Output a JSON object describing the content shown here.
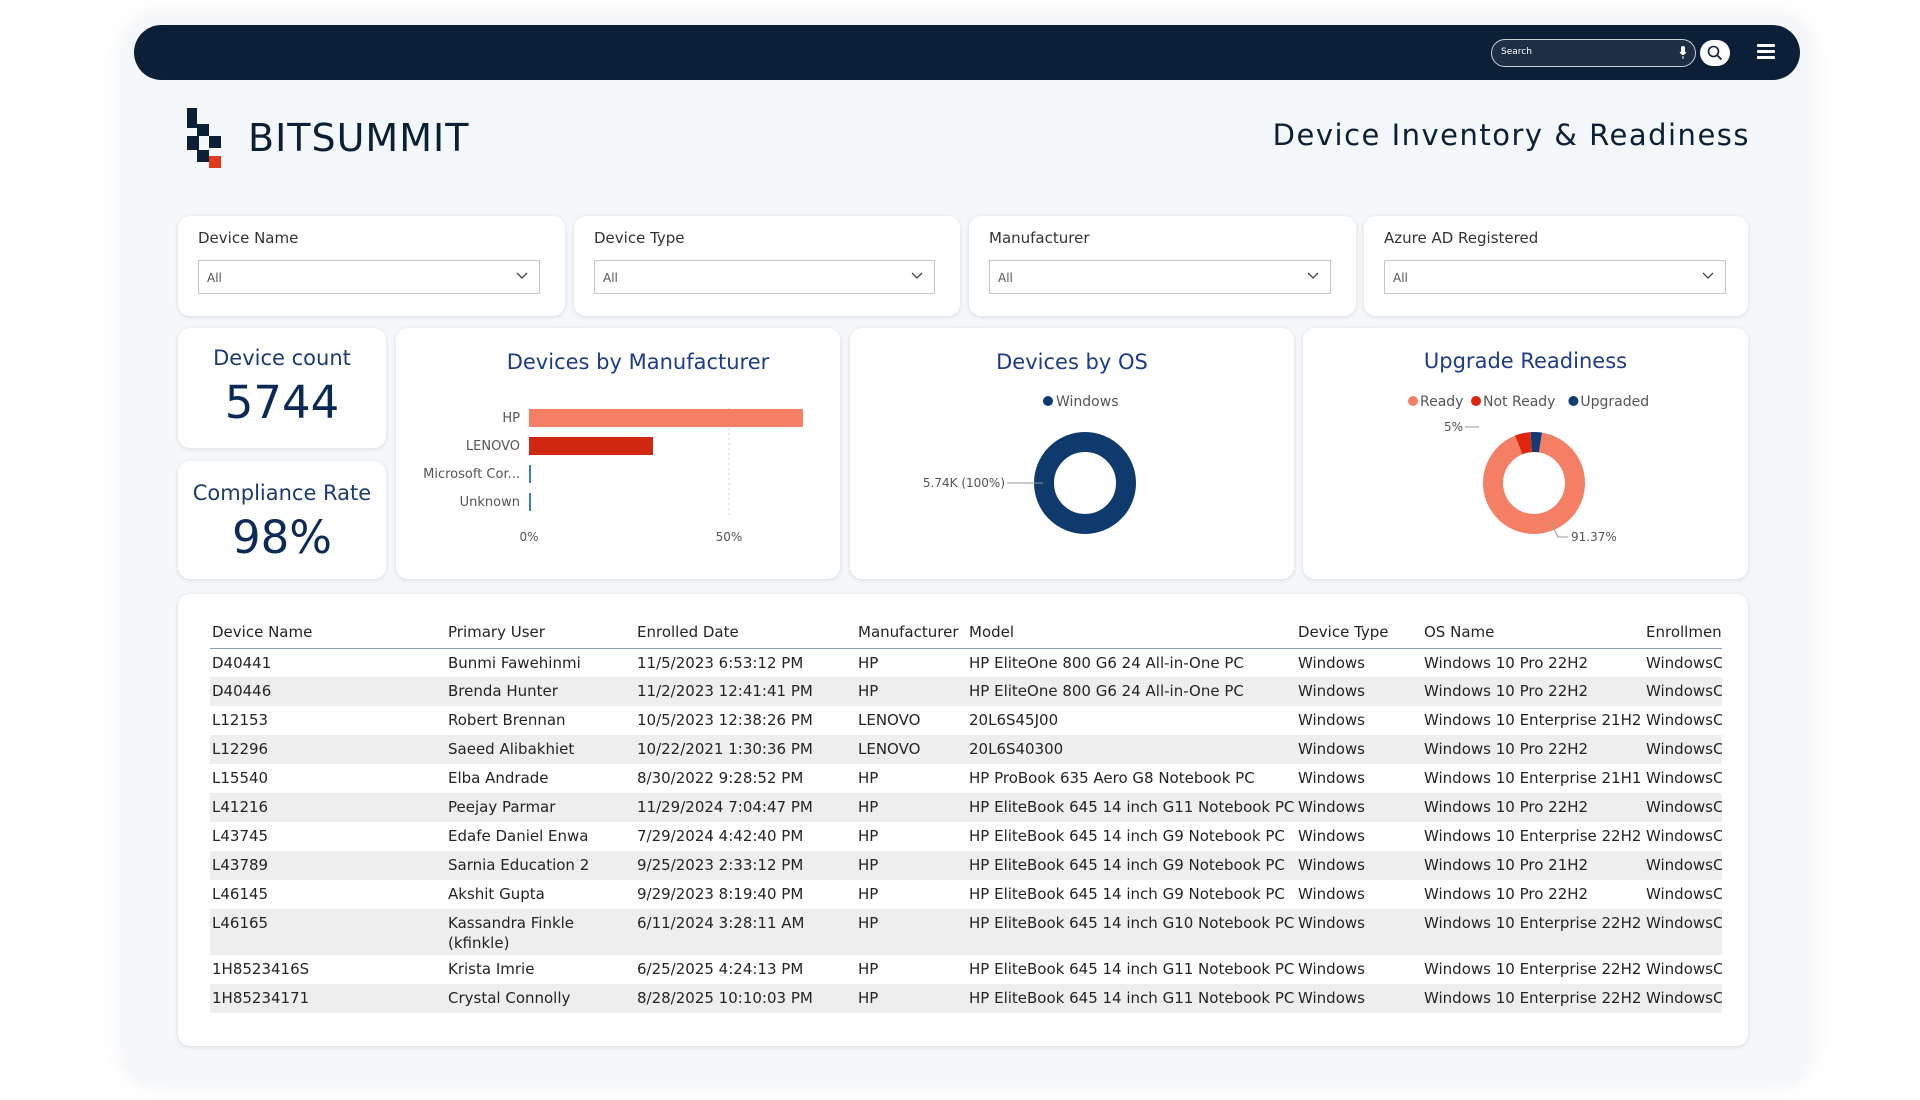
{
  "header": {
    "search_placeholder": "Search",
    "menu_icon": "hamburger-menu-icon",
    "search_icon": "search-icon",
    "mic_icon": "microphone-icon"
  },
  "brand": {
    "name": "BITSUMMIT",
    "logo_colors": [
      "#0b1f36",
      "#e03a1e"
    ]
  },
  "page_title": "Device Inventory & Readiness",
  "filters": [
    {
      "label": "Device Name",
      "value": "All"
    },
    {
      "label": "Device Type",
      "value": "All"
    },
    {
      "label": "Manufacturer",
      "value": "All"
    },
    {
      "label": "Azure AD Registered",
      "value": "All"
    }
  ],
  "kpis": {
    "device_count": {
      "label": "Device count",
      "value": "5744"
    },
    "compliance": {
      "label": "Compliance Rate",
      "value": "98%"
    }
  },
  "colors": {
    "hp": "#f57f64",
    "lenovo": "#cf2710",
    "microsoft": "#3c79c8",
    "windows": "#0e3a6e",
    "ready": "#f57f64",
    "not_ready": "#e0250f",
    "upgraded": "#123d75"
  },
  "chart_data": [
    {
      "type": "bar",
      "title": "Devices by Manufacturer",
      "orientation": "horizontal",
      "categories": [
        "HP",
        "LENOVO",
        "Microsoft Cor...",
        "Unknown"
      ],
      "values": [
        68.5,
        31.0,
        0.3,
        0.2
      ],
      "x_ticks": [
        "0%",
        "50%"
      ],
      "xlim": [
        0,
        100
      ]
    },
    {
      "type": "pie",
      "title": "Devices by OS",
      "donut": true,
      "legend": [
        "Windows"
      ],
      "slices": [
        {
          "label": "Windows",
          "value": 100
        }
      ],
      "data_label": "5.74K (100%)"
    },
    {
      "type": "pie",
      "title": "Upgrade Readiness",
      "donut": true,
      "legend": [
        "Ready",
        "Not Ready",
        "Upgraded"
      ],
      "slices": [
        {
          "label": "Ready",
          "value": 91.37
        },
        {
          "label": "Not Ready",
          "value": 5.0
        },
        {
          "label": "Upgraded",
          "value": 3.63
        }
      ],
      "data_labels": [
        "5%",
        "91.37%"
      ]
    }
  ],
  "table": {
    "columns": [
      "Device Name",
      "Primary User",
      "Enrolled Date",
      "Manufacturer",
      "Model",
      "Device Type",
      "OS Name",
      "Enrollmen"
    ],
    "rows": [
      [
        "D40441",
        "Bunmi Fawehinmi",
        "11/5/2023 6:53:12 PM",
        "HP",
        "HP EliteOne 800 G6 24 All-in-One PC",
        "Windows",
        "Windows 10 Pro 22H2",
        "WindowsC"
      ],
      [
        "D40446",
        "Brenda Hunter",
        "11/2/2023 12:41:41 PM",
        "HP",
        "HP EliteOne 800 G6 24 All-in-One PC",
        "Windows",
        "Windows 10 Pro 22H2",
        "WindowsC"
      ],
      [
        "L12153",
        "Robert Brennan",
        "10/5/2023 12:38:26 PM",
        "LENOVO",
        "20L6S45J00",
        "Windows",
        "Windows 10 Enterprise 21H2",
        "WindowsC"
      ],
      [
        "L12296",
        "Saeed Alibakhiet",
        "10/22/2021 1:30:36 PM",
        "LENOVO",
        "20L6S40300",
        "Windows",
        "Windows 10 Pro 22H2",
        "WindowsC"
      ],
      [
        "L15540",
        "Elba Andrade",
        "8/30/2022 9:28:52 PM",
        "HP",
        "HP ProBook 635 Aero G8 Notebook PC",
        "Windows",
        "Windows 10 Enterprise 21H1",
        "WindowsC"
      ],
      [
        "L41216",
        "Peejay Parmar",
        "11/29/2024 7:04:47 PM",
        "HP",
        "HP EliteBook 645 14 inch G11 Notebook PC",
        "Windows",
        "Windows 10 Pro 22H2",
        "WindowsC"
      ],
      [
        "L43745",
        "Edafe Daniel Enwa",
        "7/29/2024 4:42:40 PM",
        "HP",
        "HP EliteBook 645 14 inch G9 Notebook PC",
        "Windows",
        "Windows 10 Enterprise 22H2",
        "WindowsC"
      ],
      [
        "L43789",
        "Sarnia Education 2",
        "9/25/2023 2:33:12 PM",
        "HP",
        "HP EliteBook 645 14 inch G9 Notebook PC",
        "Windows",
        "Windows 10 Pro 21H2",
        "WindowsC"
      ],
      [
        "L46145",
        "Akshit Gupta",
        "9/29/2023 8:19:40 PM",
        "HP",
        "HP EliteBook 645 14 inch G9 Notebook PC",
        "Windows",
        "Windows 10 Pro 22H2",
        "WindowsC"
      ],
      [
        "L46165",
        "Kassandra Finkle (kfinkle)",
        "6/11/2024 3:28:11 AM",
        "HP",
        "HP EliteBook 645 14 inch G10 Notebook PC",
        "Windows",
        "Windows 10 Enterprise 22H2",
        "WindowsC"
      ],
      [
        "1H8523416S",
        "Krista Imrie",
        "6/25/2025 4:24:13 PM",
        "HP",
        "HP EliteBook 645 14 inch G11 Notebook PC",
        "Windows",
        "Windows 10 Enterprise 22H2",
        "WindowsC"
      ],
      [
        "1H85234171",
        "Crystal Connolly",
        "8/28/2025 10:10:03 PM",
        "HP",
        "HP EliteBook 645 14 inch G11 Notebook PC",
        "Windows",
        "Windows 10 Enterprise 22H2",
        "WindowsC"
      ]
    ]
  }
}
